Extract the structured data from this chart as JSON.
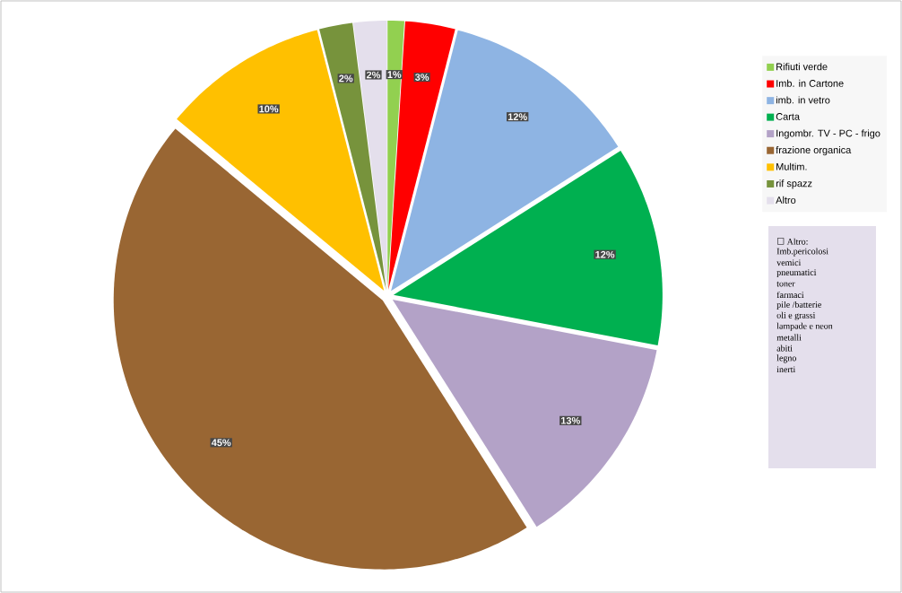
{
  "chart_data": {
    "type": "pie",
    "categories": [
      "Rifiuti verde",
      "Imb. in Cartone",
      "imb. in vetro",
      "Carta",
      "Ingombr. TV - PC - frigo",
      "frazione organica",
      "Multim.",
      "rif spazz",
      "Altro"
    ],
    "values": [
      1,
      3,
      12,
      12,
      13,
      45,
      10,
      2,
      2
    ],
    "colors": [
      "#92d050",
      "#ff0000",
      "#8eb4e3",
      "#00b050",
      "#b3a2c7",
      "#996633",
      "#ffc000",
      "#77933c",
      "#e4dfec"
    ],
    "value_labels": [
      "1%",
      "3%",
      "12%",
      "12%",
      "13%",
      "45%",
      "10%",
      "2%",
      "2%"
    ],
    "legend": "top right",
    "annotations": [
      "☐ Altro:",
      "Imb.pericolosi",
      "vemici",
      "pneumatici",
      "toner",
      "farmaci",
      "pile /batterie",
      "oli e grassi",
      "lampade e neon",
      "metalli",
      "abiti",
      "legno",
      "inerti"
    ]
  }
}
